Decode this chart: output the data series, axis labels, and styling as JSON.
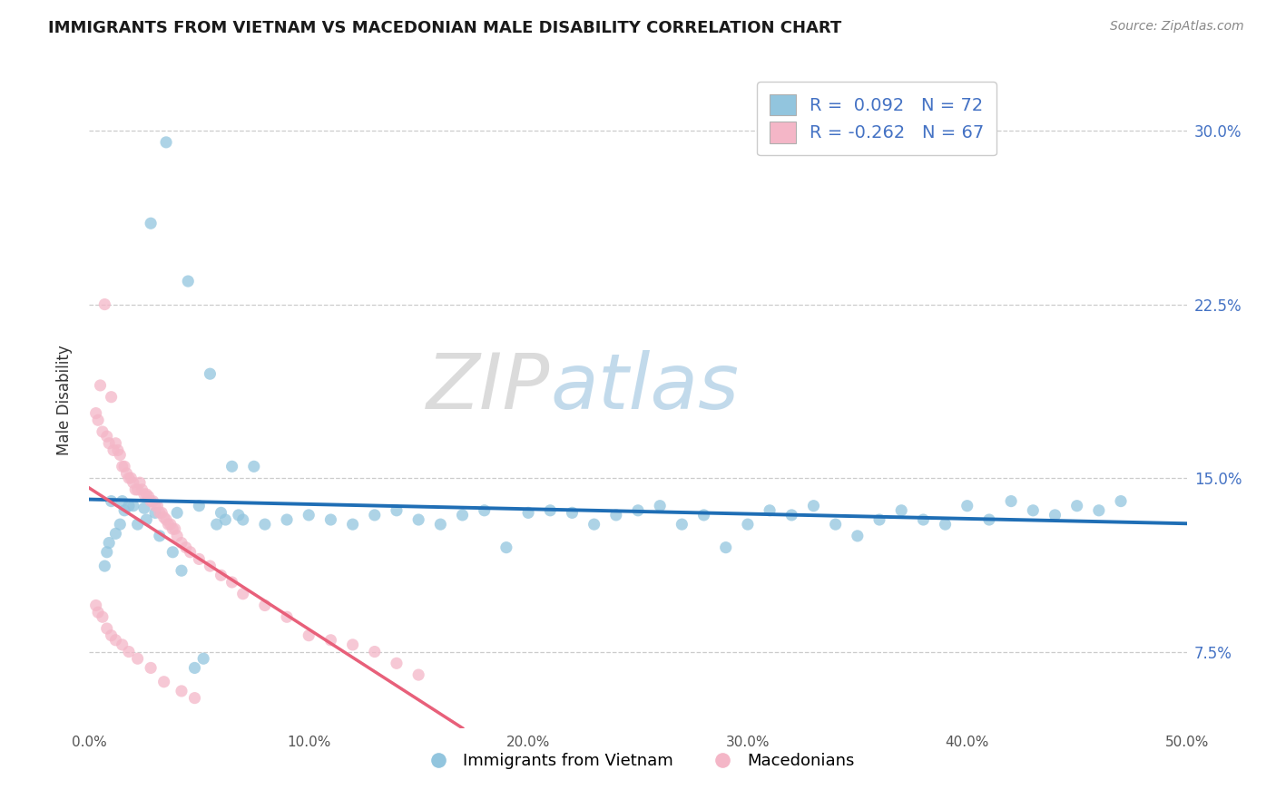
{
  "title": "IMMIGRANTS FROM VIETNAM VS MACEDONIAN MALE DISABILITY CORRELATION CHART",
  "source": "Source: ZipAtlas.com",
  "ylabel_label": "Male Disability",
  "legend_label1": "Immigrants from Vietnam",
  "legend_label2": "Macedonians",
  "R1": 0.092,
  "N1": 72,
  "R2": -0.262,
  "N2": 67,
  "color_blue": "#92c5de",
  "color_pink": "#f4b6c7",
  "color_blue_line": "#1f6eb5",
  "color_pink_solid": "#e8607a",
  "color_pink_dashed": "#e0b0bc",
  "xlim": [
    0.0,
    0.5
  ],
  "ylim": [
    0.042,
    0.325
  ],
  "xlabel_ticks": [
    "0.0%",
    "10.0%",
    "20.0%",
    "30.0%",
    "40.0%",
    "50.0%"
  ],
  "xlabel_vals": [
    0.0,
    0.1,
    0.2,
    0.3,
    0.4,
    0.5
  ],
  "ylabel_ticks": [
    "7.5%",
    "15.0%",
    "22.5%",
    "30.0%"
  ],
  "ylabel_vals": [
    0.075,
    0.15,
    0.225,
    0.3
  ],
  "blue_x": [
    0.035,
    0.028,
    0.045,
    0.055,
    0.065,
    0.075,
    0.01,
    0.015,
    0.02,
    0.025,
    0.03,
    0.04,
    0.05,
    0.06,
    0.07,
    0.08,
    0.09,
    0.1,
    0.11,
    0.12,
    0.13,
    0.14,
    0.15,
    0.16,
    0.17,
    0.18,
    0.19,
    0.2,
    0.21,
    0.22,
    0.23,
    0.24,
    0.25,
    0.26,
    0.27,
    0.28,
    0.29,
    0.3,
    0.31,
    0.32,
    0.33,
    0.34,
    0.35,
    0.36,
    0.37,
    0.38,
    0.39,
    0.4,
    0.41,
    0.42,
    0.43,
    0.44,
    0.45,
    0.46,
    0.47,
    0.007,
    0.008,
    0.009,
    0.012,
    0.014,
    0.016,
    0.018,
    0.022,
    0.026,
    0.032,
    0.038,
    0.042,
    0.048,
    0.052,
    0.058,
    0.062,
    0.068
  ],
  "blue_y": [
    0.295,
    0.26,
    0.235,
    0.195,
    0.155,
    0.155,
    0.14,
    0.14,
    0.138,
    0.137,
    0.135,
    0.135,
    0.138,
    0.135,
    0.132,
    0.13,
    0.132,
    0.134,
    0.132,
    0.13,
    0.134,
    0.136,
    0.132,
    0.13,
    0.134,
    0.136,
    0.12,
    0.135,
    0.136,
    0.135,
    0.13,
    0.134,
    0.136,
    0.138,
    0.13,
    0.134,
    0.12,
    0.13,
    0.136,
    0.134,
    0.138,
    0.13,
    0.125,
    0.132,
    0.136,
    0.132,
    0.13,
    0.138,
    0.132,
    0.14,
    0.136,
    0.134,
    0.138,
    0.136,
    0.14,
    0.112,
    0.118,
    0.122,
    0.126,
    0.13,
    0.136,
    0.138,
    0.13,
    0.132,
    0.125,
    0.118,
    0.11,
    0.068,
    0.072,
    0.13,
    0.132,
    0.134
  ],
  "pink_x": [
    0.007,
    0.005,
    0.01,
    0.003,
    0.004,
    0.006,
    0.008,
    0.009,
    0.011,
    0.012,
    0.013,
    0.014,
    0.015,
    0.016,
    0.017,
    0.018,
    0.019,
    0.02,
    0.021,
    0.022,
    0.023,
    0.024,
    0.025,
    0.026,
    0.027,
    0.028,
    0.029,
    0.03,
    0.031,
    0.032,
    0.033,
    0.034,
    0.035,
    0.036,
    0.037,
    0.038,
    0.039,
    0.04,
    0.042,
    0.044,
    0.046,
    0.05,
    0.055,
    0.06,
    0.065,
    0.07,
    0.08,
    0.09,
    0.1,
    0.11,
    0.12,
    0.13,
    0.14,
    0.15,
    0.003,
    0.004,
    0.006,
    0.008,
    0.01,
    0.012,
    0.015,
    0.018,
    0.022,
    0.028,
    0.034,
    0.042,
    0.048
  ],
  "pink_y": [
    0.225,
    0.19,
    0.185,
    0.178,
    0.175,
    0.17,
    0.168,
    0.165,
    0.162,
    0.165,
    0.162,
    0.16,
    0.155,
    0.155,
    0.152,
    0.15,
    0.15,
    0.148,
    0.145,
    0.145,
    0.148,
    0.145,
    0.143,
    0.143,
    0.142,
    0.14,
    0.14,
    0.138,
    0.138,
    0.135,
    0.135,
    0.133,
    0.132,
    0.13,
    0.13,
    0.128,
    0.128,
    0.125,
    0.122,
    0.12,
    0.118,
    0.115,
    0.112,
    0.108,
    0.105,
    0.1,
    0.095,
    0.09,
    0.082,
    0.08,
    0.078,
    0.075,
    0.07,
    0.065,
    0.095,
    0.092,
    0.09,
    0.085,
    0.082,
    0.08,
    0.078,
    0.075,
    0.072,
    0.068,
    0.062,
    0.058,
    0.055
  ]
}
